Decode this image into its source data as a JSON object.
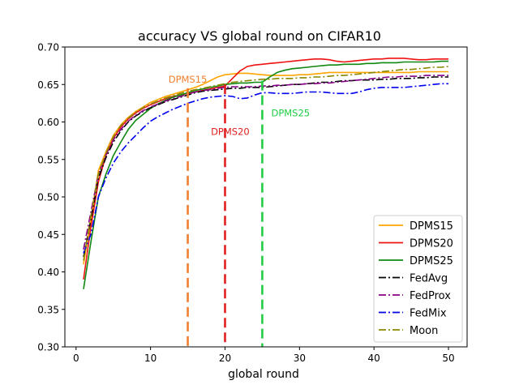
{
  "chart_data": {
    "type": "line",
    "title": "accuracy VS global round on CIFAR10",
    "xlabel": "global round",
    "ylabel": "",
    "xlim": [
      -1.5,
      52.5
    ],
    "ylim": [
      0.3,
      0.7
    ],
    "xticks": [
      0,
      10,
      20,
      30,
      40,
      50
    ],
    "xtick_labels": [
      "0",
      "10",
      "20",
      "30",
      "40",
      "50"
    ],
    "yticks": [
      0.3,
      0.35,
      0.4,
      0.45,
      0.5,
      0.55,
      0.6,
      0.65,
      0.7
    ],
    "ytick_labels": [
      "0.30",
      "0.35",
      "0.40",
      "0.45",
      "0.50",
      "0.55",
      "0.60",
      "0.65",
      "0.70"
    ],
    "grid": false,
    "legend_position": "lower-right",
    "x": [
      1,
      2,
      3,
      4,
      5,
      6,
      7,
      8,
      9,
      10,
      11,
      12,
      13,
      14,
      15,
      16,
      17,
      18,
      19,
      20,
      21,
      22,
      23,
      24,
      25,
      26,
      27,
      28,
      29,
      30,
      31,
      32,
      33,
      34,
      35,
      36,
      37,
      38,
      39,
      40,
      41,
      42,
      43,
      44,
      45,
      46,
      47,
      48,
      49,
      50
    ],
    "series": [
      {
        "name": "DPMS15",
        "color": "#ffa500",
        "dash": "solid",
        "values": [
          0.41,
          0.47,
          0.535,
          0.56,
          0.582,
          0.596,
          0.606,
          0.614,
          0.62,
          0.626,
          0.63,
          0.634,
          0.637,
          0.64,
          0.643,
          0.646,
          0.65,
          0.655,
          0.66,
          0.663,
          0.664,
          0.665,
          0.665,
          0.664,
          0.663,
          0.662,
          0.662,
          0.662,
          0.662,
          0.663,
          0.663,
          0.664,
          0.665,
          0.666,
          0.666,
          0.666,
          0.666,
          0.666,
          0.666,
          0.666,
          0.666,
          0.666,
          0.666,
          0.666,
          0.666,
          0.667,
          0.667,
          0.667,
          0.667,
          0.667
        ]
      },
      {
        "name": "DPMS20",
        "color": "#ee1111",
        "dash": "solid",
        "values": [
          0.39,
          0.46,
          0.52,
          0.555,
          0.578,
          0.593,
          0.604,
          0.612,
          0.618,
          0.623,
          0.627,
          0.631,
          0.634,
          0.636,
          0.638,
          0.64,
          0.642,
          0.644,
          0.646,
          0.648,
          0.658,
          0.668,
          0.674,
          0.676,
          0.677,
          0.678,
          0.679,
          0.68,
          0.681,
          0.682,
          0.683,
          0.684,
          0.684,
          0.683,
          0.681,
          0.68,
          0.681,
          0.682,
          0.683,
          0.684,
          0.684,
          0.685,
          0.685,
          0.685,
          0.684,
          0.683,
          0.683,
          0.684,
          0.684,
          0.684
        ]
      },
      {
        "name": "DPMS25",
        "color": "#118811",
        "dash": "solid",
        "values": [
          0.377,
          0.44,
          0.5,
          0.53,
          0.555,
          0.573,
          0.59,
          0.602,
          0.61,
          0.618,
          0.624,
          0.629,
          0.633,
          0.636,
          0.639,
          0.642,
          0.644,
          0.646,
          0.648,
          0.65,
          0.651,
          0.652,
          0.652,
          0.653,
          0.653,
          0.66,
          0.666,
          0.669,
          0.671,
          0.672,
          0.673,
          0.674,
          0.675,
          0.676,
          0.676,
          0.677,
          0.677,
          0.677,
          0.678,
          0.678,
          0.679,
          0.679,
          0.679,
          0.68,
          0.68,
          0.68,
          0.68,
          0.68,
          0.681,
          0.681
        ]
      },
      {
        "name": "FedAvg",
        "color": "#000000",
        "dash": "dashdot",
        "values": [
          0.42,
          0.47,
          0.525,
          0.552,
          0.573,
          0.588,
          0.6,
          0.608,
          0.614,
          0.619,
          0.623,
          0.627,
          0.63,
          0.633,
          0.636,
          0.639,
          0.641,
          0.642,
          0.643,
          0.644,
          0.645,
          0.645,
          0.646,
          0.646,
          0.646,
          0.647,
          0.648,
          0.649,
          0.65,
          0.65,
          0.651,
          0.652,
          0.653,
          0.653,
          0.654,
          0.655,
          0.655,
          0.656,
          0.656,
          0.656,
          0.657,
          0.657,
          0.658,
          0.658,
          0.658,
          0.659,
          0.659,
          0.66,
          0.66,
          0.66
        ]
      },
      {
        "name": "FedProx",
        "color": "#880088",
        "dash": "dashdot",
        "values": [
          0.43,
          0.48,
          0.53,
          0.556,
          0.576,
          0.59,
          0.601,
          0.609,
          0.615,
          0.62,
          0.624,
          0.628,
          0.631,
          0.634,
          0.637,
          0.64,
          0.642,
          0.643,
          0.645,
          0.646,
          0.647,
          0.647,
          0.647,
          0.647,
          0.648,
          0.648,
          0.649,
          0.649,
          0.65,
          0.65,
          0.651,
          0.651,
          0.652,
          0.652,
          0.653,
          0.654,
          0.655,
          0.656,
          0.657,
          0.658,
          0.659,
          0.66,
          0.66,
          0.661,
          0.661,
          0.661,
          0.662,
          0.662,
          0.662,
          0.662
        ]
      },
      {
        "name": "FedMix",
        "color": "#0000ee",
        "dash": "dashdot",
        "values": [
          0.425,
          0.45,
          0.5,
          0.525,
          0.545,
          0.56,
          0.572,
          0.582,
          0.592,
          0.601,
          0.607,
          0.612,
          0.617,
          0.621,
          0.625,
          0.628,
          0.631,
          0.633,
          0.634,
          0.635,
          0.634,
          0.631,
          0.632,
          0.636,
          0.639,
          0.639,
          0.638,
          0.638,
          0.638,
          0.639,
          0.64,
          0.64,
          0.64,
          0.639,
          0.638,
          0.638,
          0.638,
          0.64,
          0.643,
          0.645,
          0.646,
          0.646,
          0.646,
          0.646,
          0.647,
          0.648,
          0.649,
          0.65,
          0.651,
          0.651
        ]
      },
      {
        "name": "Moon",
        "color": "#888800",
        "dash": "dashdot",
        "values": [
          0.415,
          0.475,
          0.53,
          0.558,
          0.58,
          0.595,
          0.605,
          0.613,
          0.619,
          0.624,
          0.628,
          0.632,
          0.635,
          0.638,
          0.641,
          0.643,
          0.645,
          0.647,
          0.649,
          0.651,
          0.653,
          0.654,
          0.655,
          0.656,
          0.657,
          0.657,
          0.658,
          0.658,
          0.658,
          0.659,
          0.659,
          0.66,
          0.66,
          0.661,
          0.662,
          0.662,
          0.663,
          0.664,
          0.665,
          0.666,
          0.667,
          0.668,
          0.669,
          0.67,
          0.67,
          0.671,
          0.672,
          0.673,
          0.673,
          0.674
        ]
      }
    ],
    "annotations": [
      {
        "text": "DPMS15",
        "x": 15,
        "color": "#f08030",
        "line_top": 0.645,
        "label_x": 15,
        "label_y": 0.657,
        "label_above": true
      },
      {
        "text": "DPMS20",
        "x": 20,
        "color": "#e02020",
        "line_top": 0.65,
        "label_x": 20.7,
        "label_y": 0.587,
        "label_above": false
      },
      {
        "text": "DPMS25",
        "x": 25,
        "color": "#22cc44",
        "line_top": 0.655,
        "label_x": 28.8,
        "label_y": 0.612,
        "label_above": false
      }
    ]
  }
}
